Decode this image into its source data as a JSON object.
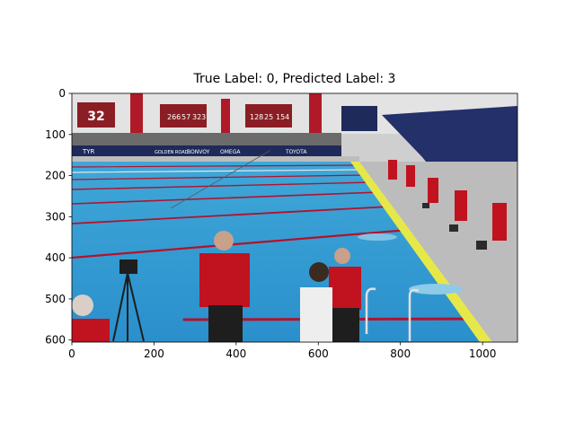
{
  "figure": {
    "title": "True Label: 0, Predicted Label: 3"
  },
  "image": {
    "description_tag": "swimming-pool-photo",
    "colors": {
      "pool_water": "#2a9fd6",
      "deck": "#d9d9d9",
      "officials_shirt": "#c1121f",
      "banner_navy": "#1e2a5a",
      "gutter_yellow": "#e6e84a",
      "lane_red": "#b3122b"
    },
    "signage": {
      "scoreboard_left": "32",
      "scoreboard_mid": [
        "266",
        "57",
        "323"
      ],
      "scoreboard_right": [
        "128",
        "25",
        "154"
      ],
      "sponsors": [
        "TYR",
        "BONVOY",
        "OMEGA",
        "TOYOTA",
        "GOLDEN ROAD"
      ]
    }
  },
  "axes": {
    "x_ticks": [
      "0",
      "200",
      "400",
      "600",
      "800",
      "1000"
    ],
    "y_ticks": [
      "0",
      "100",
      "200",
      "300",
      "400",
      "500",
      "600"
    ],
    "x_tick_values": [
      0,
      200,
      400,
      600,
      800,
      1000
    ],
    "y_tick_values": [
      0,
      100,
      200,
      300,
      400,
      500,
      600
    ],
    "x_range": [
      0,
      1085
    ],
    "y_range": [
      0,
      605
    ]
  }
}
